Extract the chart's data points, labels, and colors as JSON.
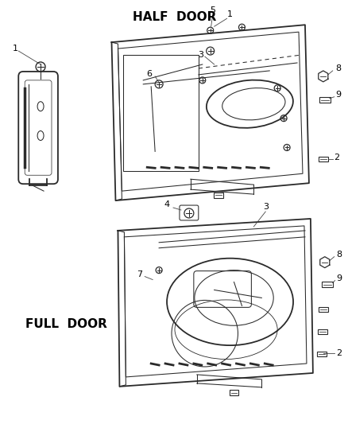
{
  "bg_color": "#ffffff",
  "line_color": "#2a2a2a",
  "text_color": "#000000",
  "half_door_label": "HALF  DOOR",
  "full_door_label": "FULL  DOOR",
  "font_size_label": 8,
  "font_size_title": 11,
  "lw_main": 1.3,
  "lw_thin": 0.75,
  "lw_vthick": 1.8
}
